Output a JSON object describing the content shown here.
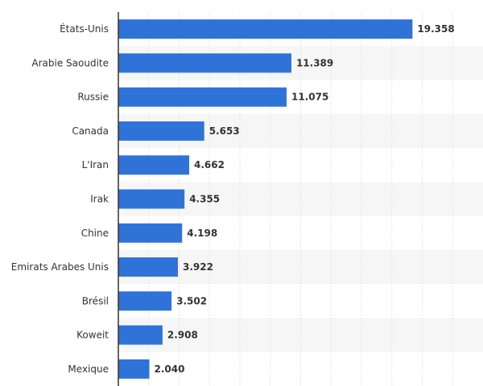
{
  "chart_data": {
    "type": "bar",
    "orientation": "horizontal",
    "categories": [
      "États-Unis",
      "Arabie Saoudite",
      "Russie",
      "Canada",
      "L'Iran",
      "Irak",
      "Chine",
      "Emirats Arabes Unis",
      "Brésil",
      "Koweit",
      "Mexique"
    ],
    "values": [
      19.358,
      11.389,
      11.075,
      5.653,
      4.662,
      4.355,
      4.198,
      3.922,
      3.502,
      2.908,
      2.04
    ],
    "value_labels": [
      "19.358",
      "11.389",
      "11.075",
      "5.653",
      "4.662",
      "4.355",
      "4.198",
      "3.922",
      "3.502",
      "2.908",
      "2.040"
    ],
    "title": "",
    "xlabel": "",
    "ylabel": "",
    "xlim": [
      0,
      24
    ],
    "grid": true,
    "legend": "none",
    "bar_color": "#2f73d9",
    "band_color": "#f6f6f6",
    "grid_color": "#e3e3e3",
    "axis_color": "#333333"
  }
}
